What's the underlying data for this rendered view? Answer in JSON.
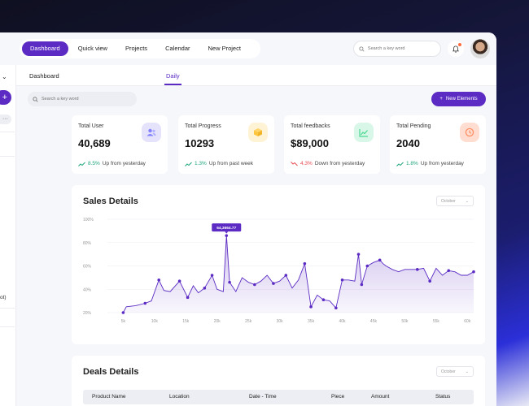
{
  "topnav": {
    "items": [
      {
        "label": "Dashboard",
        "active": true
      },
      {
        "label": "Quick view",
        "active": false
      },
      {
        "label": "Projects",
        "active": false
      },
      {
        "label": "Calendar",
        "active": false
      },
      {
        "label": "New Project",
        "active": false
      }
    ],
    "search_placeholder": "Search a key word"
  },
  "sidebar": {
    "fragment_text": "ot)"
  },
  "subtabs": {
    "left": "Dashboard",
    "right": "Daily"
  },
  "main": {
    "search_placeholder": "Search a key word",
    "new_button_label": "New Elements"
  },
  "stats": [
    {
      "title": "Total User",
      "value": "40,689",
      "pct": "8.5%",
      "trend": "up",
      "note": "Up from yesterday",
      "icon": "users-icon",
      "icon_bg": "#e4e3fb",
      "icon_color": "#8280ff"
    },
    {
      "title": "Total Progress",
      "value": "10293",
      "pct": "1.3%",
      "trend": "up",
      "note": "Up from past week",
      "icon": "cube-icon",
      "icon_bg": "#fff3d6",
      "icon_color": "#fec53d"
    },
    {
      "title": "Total feedbacks",
      "value": "$89,000",
      "pct": "4.3%",
      "trend": "down",
      "note": "Down from yesterday",
      "icon": "chart-line-icon",
      "icon_bg": "#d9f7e8",
      "icon_color": "#4ad991"
    },
    {
      "title": "Total Pending",
      "value": "2040",
      "pct": "1.8%",
      "trend": "up",
      "note": "Up from yesterday",
      "icon": "clock-icon",
      "icon_bg": "#ffded1",
      "icon_color": "#ff9066"
    }
  ],
  "sales": {
    "title": "Sales Details",
    "filter": "October"
  },
  "deals": {
    "title": "Deals Details",
    "filter": "October",
    "columns": [
      "Product Name",
      "Location",
      "Date - Time",
      "Piece",
      "Amount",
      "Status"
    ]
  },
  "chart_data": {
    "type": "area",
    "title": "Sales Details",
    "x_ticks": [
      "5k",
      "10k",
      "15k",
      "20k",
      "25k",
      "30k",
      "35k",
      "40k",
      "45k",
      "50k",
      "55k",
      "60k"
    ],
    "x_tick_values": [
      5,
      10,
      15,
      20,
      25,
      30,
      35,
      40,
      45,
      50,
      55,
      60
    ],
    "y_ticks": [
      "20%",
      "40%",
      "60%",
      "80%",
      "100%"
    ],
    "y_tick_values": [
      20,
      40,
      60,
      80,
      100
    ],
    "xlim": [
      3,
      61
    ],
    "ylim": [
      20,
      100
    ],
    "grid": true,
    "annotation": {
      "label": "64,3664.77",
      "x": 21.5,
      "y": 86
    },
    "series": [
      {
        "color": "#5b2bc3",
        "points": [
          [
            5,
            20
          ],
          [
            5.5,
            25
          ],
          [
            7,
            26
          ],
          [
            8.5,
            28
          ],
          [
            9.5,
            30
          ],
          [
            10.7,
            48
          ],
          [
            11.5,
            39
          ],
          [
            12.5,
            38
          ],
          [
            14,
            47
          ],
          [
            15.3,
            33
          ],
          [
            16.2,
            43
          ],
          [
            17,
            37
          ],
          [
            18,
            41
          ],
          [
            19.2,
            52
          ],
          [
            20,
            40
          ],
          [
            21,
            38
          ],
          [
            21.5,
            86
          ],
          [
            22,
            46
          ],
          [
            23,
            38
          ],
          [
            24,
            50
          ],
          [
            25,
            46
          ],
          [
            26,
            44
          ],
          [
            27,
            47
          ],
          [
            28,
            52
          ],
          [
            29,
            45
          ],
          [
            30,
            47
          ],
          [
            31,
            52
          ],
          [
            32,
            41
          ],
          [
            33,
            48
          ],
          [
            34,
            62
          ],
          [
            35,
            25
          ],
          [
            36,
            35
          ],
          [
            37,
            31
          ],
          [
            38,
            30
          ],
          [
            39,
            24
          ],
          [
            40,
            48
          ],
          [
            41,
            48
          ],
          [
            42,
            47
          ],
          [
            42.6,
            70
          ],
          [
            43.1,
            44
          ],
          [
            44,
            60
          ],
          [
            45,
            63
          ],
          [
            46,
            65
          ],
          [
            46.5,
            62
          ],
          [
            47,
            60
          ],
          [
            48,
            57
          ],
          [
            49,
            55
          ],
          [
            50,
            57
          ],
          [
            51,
            57
          ],
          [
            52,
            57
          ],
          [
            53,
            58
          ],
          [
            54,
            47
          ],
          [
            55,
            58
          ],
          [
            56,
            52
          ],
          [
            57,
            56
          ],
          [
            58,
            55
          ],
          [
            59,
            52
          ],
          [
            60,
            52
          ],
          [
            61,
            55
          ]
        ],
        "markers": [
          [
            5,
            20
          ],
          [
            8.5,
            28
          ],
          [
            10.7,
            48
          ],
          [
            14,
            47
          ],
          [
            15.3,
            33
          ],
          [
            18,
            41
          ],
          [
            19.2,
            52
          ],
          [
            21.5,
            86
          ],
          [
            22,
            46
          ],
          [
            26,
            44
          ],
          [
            29,
            45
          ],
          [
            31,
            52
          ],
          [
            34,
            62
          ],
          [
            35,
            25
          ],
          [
            37,
            31
          ],
          [
            39,
            24
          ],
          [
            40,
            48
          ],
          [
            42.6,
            70
          ],
          [
            43.1,
            44
          ],
          [
            44,
            60
          ],
          [
            46,
            65
          ],
          [
            52,
            57
          ],
          [
            54,
            47
          ],
          [
            57,
            56
          ],
          [
            61,
            55
          ]
        ]
      }
    ]
  }
}
